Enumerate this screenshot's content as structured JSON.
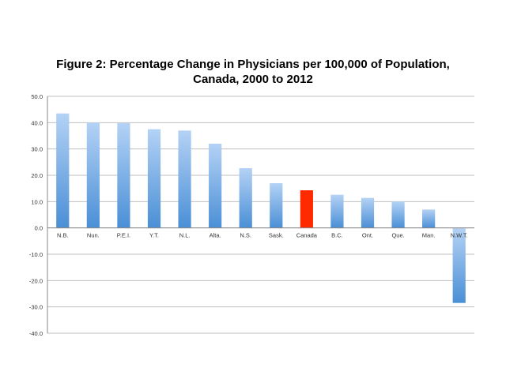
{
  "chart_data": {
    "type": "bar",
    "title": "Figure 2: Percentage Change in Physicians per 100,000 of Population,",
    "subtitle": "Canada, 2000 to 2012",
    "categories": [
      "N.B.",
      "Nun.",
      "P.E.I.",
      "Y.T.",
      "N.L.",
      "Alta.",
      "N.S.",
      "Sask.",
      "Canada",
      "B.C.",
      "Ont.",
      "Que.",
      "Man.",
      "N.W.T."
    ],
    "values": [
      43.5,
      40.0,
      39.8,
      37.5,
      37.0,
      32.0,
      22.7,
      17.0,
      14.3,
      12.6,
      11.4,
      10.0,
      7.0,
      -28.5
    ],
    "highlight_category": "Canada",
    "ylim": [
      -40,
      50
    ],
    "yticks": [
      "-40.0",
      "-30.0",
      "-20.0",
      "-10.0",
      "0.0",
      "10.0",
      "20.0",
      "30.0",
      "40.0",
      "50.0"
    ],
    "ytick_values": [
      -40,
      -30,
      -20,
      -10,
      0,
      10,
      20,
      30,
      40,
      50
    ],
    "grid": true,
    "xlabel": "",
    "ylabel": "",
    "colors": {
      "bar_top": "#b4d2f5",
      "bar_bottom": "#4a8fd6",
      "highlight": "#ff2a00",
      "grid": "#bfbfbf",
      "axis": "#888888"
    }
  }
}
